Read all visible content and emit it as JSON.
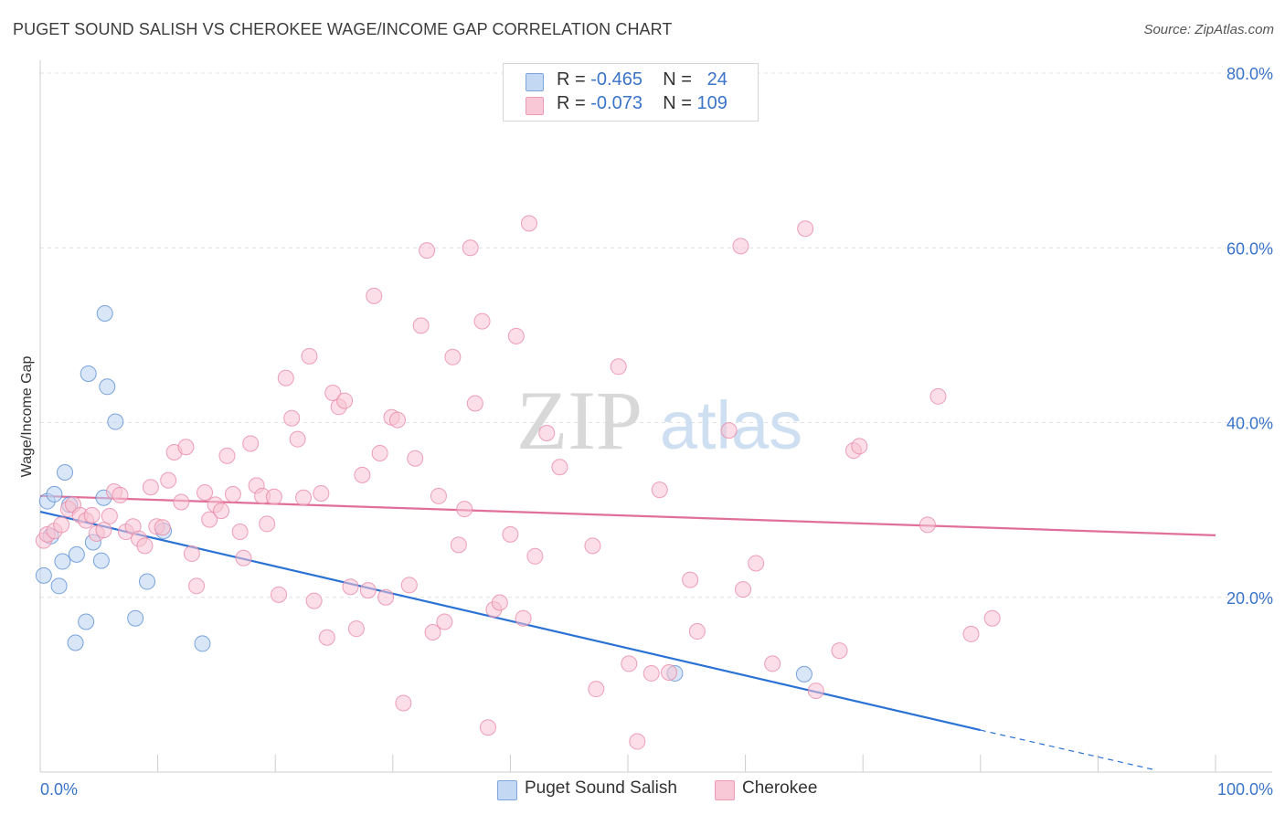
{
  "title": "PUGET SOUND SALISH VS CHEROKEE WAGE/INCOME GAP CORRELATION CHART",
  "source": "Source: ZipAtlas.com",
  "watermark": {
    "zip": "ZIP",
    "atlas": "atlas"
  },
  "legend": {
    "rows": [
      {
        "r_label": "R = ",
        "r_value": "-0.465",
        "n_label": "N = ",
        "n_value": "24",
        "color": "#9dc0ea"
      },
      {
        "r_label": "R = ",
        "r_value": "-0.073",
        "n_label": "N = ",
        "n_value": "109",
        "color": "#f4a9c0"
      }
    ]
  },
  "chart_data": {
    "type": "scatter",
    "ylabel": "Wage/Income Gap",
    "xlabel": "",
    "xlim": [
      0,
      100
    ],
    "ylim": [
      0,
      80
    ],
    "x_tick_labels": [
      {
        "value": 0,
        "label": "0.0%"
      },
      {
        "value": 100,
        "label": "100.0%"
      }
    ],
    "y_tick_labels": [
      {
        "value": 20,
        "label": "20.0%"
      },
      {
        "value": 40,
        "label": "40.0%"
      },
      {
        "value": 60,
        "label": "60.0%"
      },
      {
        "value": 80,
        "label": "80.0%"
      }
    ],
    "grid": "horizontal-dashed",
    "series": [
      {
        "name": "Puget Sound Salish",
        "color": "#5b8fd4",
        "fill": "#b9d2f1",
        "trend_color": "#2a72d4",
        "trend": {
          "x0": 0,
          "y0": 29.8,
          "x1": 80,
          "y1": 4.8,
          "dash_to_x": 95,
          "dash_to_y": 0.2
        },
        "points": [
          {
            "x": 0.3,
            "y": 22.5
          },
          {
            "x": 0.6,
            "y": 31.0
          },
          {
            "x": 0.9,
            "y": 27.0
          },
          {
            "x": 1.2,
            "y": 31.8
          },
          {
            "x": 1.6,
            "y": 21.3
          },
          {
            "x": 1.9,
            "y": 24.1
          },
          {
            "x": 2.1,
            "y": 34.3
          },
          {
            "x": 2.5,
            "y": 30.6
          },
          {
            "x": 3.0,
            "y": 14.8
          },
          {
            "x": 3.1,
            "y": 24.9
          },
          {
            "x": 3.9,
            "y": 17.2
          },
          {
            "x": 4.1,
            "y": 45.6
          },
          {
            "x": 4.5,
            "y": 26.3
          },
          {
            "x": 5.2,
            "y": 24.2
          },
          {
            "x": 5.4,
            "y": 31.4
          },
          {
            "x": 5.5,
            "y": 52.5
          },
          {
            "x": 5.7,
            "y": 44.1
          },
          {
            "x": 6.4,
            "y": 40.1
          },
          {
            "x": 8.1,
            "y": 17.6
          },
          {
            "x": 9.1,
            "y": 21.8
          },
          {
            "x": 10.5,
            "y": 27.6
          },
          {
            "x": 13.8,
            "y": 14.7
          },
          {
            "x": 54.0,
            "y": 11.3
          },
          {
            "x": 65.0,
            "y": 11.2
          }
        ]
      },
      {
        "name": "Cherokee",
        "color": "#e889a8",
        "fill": "#f8c3d3",
        "trend_color": "#e0709a",
        "trend": {
          "x0": 0,
          "y0": 31.6,
          "x1": 100,
          "y1": 27.1
        },
        "points": [
          {
            "x": 0.3,
            "y": 26.5
          },
          {
            "x": 0.6,
            "y": 27.2
          },
          {
            "x": 1.2,
            "y": 27.6
          },
          {
            "x": 1.8,
            "y": 28.3
          },
          {
            "x": 2.4,
            "y": 30.1
          },
          {
            "x": 2.8,
            "y": 30.6
          },
          {
            "x": 3.4,
            "y": 29.4
          },
          {
            "x": 3.9,
            "y": 28.8
          },
          {
            "x": 4.4,
            "y": 29.4
          },
          {
            "x": 4.8,
            "y": 27.3
          },
          {
            "x": 5.4,
            "y": 27.7
          },
          {
            "x": 5.9,
            "y": 29.3
          },
          {
            "x": 6.3,
            "y": 32.1
          },
          {
            "x": 6.8,
            "y": 31.7
          },
          {
            "x": 7.3,
            "y": 27.5
          },
          {
            "x": 7.9,
            "y": 28.1
          },
          {
            "x": 8.4,
            "y": 26.7
          },
          {
            "x": 8.9,
            "y": 25.9
          },
          {
            "x": 9.4,
            "y": 32.6
          },
          {
            "x": 9.9,
            "y": 28.1
          },
          {
            "x": 10.4,
            "y": 28.0
          },
          {
            "x": 10.9,
            "y": 33.4
          },
          {
            "x": 11.4,
            "y": 36.6
          },
          {
            "x": 12.0,
            "y": 30.9
          },
          {
            "x": 12.4,
            "y": 37.2
          },
          {
            "x": 12.9,
            "y": 25.0
          },
          {
            "x": 13.3,
            "y": 21.3
          },
          {
            "x": 14.0,
            "y": 32.0
          },
          {
            "x": 14.4,
            "y": 28.9
          },
          {
            "x": 14.9,
            "y": 30.6
          },
          {
            "x": 15.4,
            "y": 29.9
          },
          {
            "x": 15.9,
            "y": 36.2
          },
          {
            "x": 16.4,
            "y": 31.8
          },
          {
            "x": 17.0,
            "y": 27.5
          },
          {
            "x": 17.3,
            "y": 24.5
          },
          {
            "x": 17.9,
            "y": 37.6
          },
          {
            "x": 18.4,
            "y": 32.8
          },
          {
            "x": 18.9,
            "y": 31.6
          },
          {
            "x": 19.3,
            "y": 28.4
          },
          {
            "x": 19.9,
            "y": 31.5
          },
          {
            "x": 20.3,
            "y": 20.3
          },
          {
            "x": 20.9,
            "y": 45.1
          },
          {
            "x": 21.4,
            "y": 40.5
          },
          {
            "x": 21.9,
            "y": 38.1
          },
          {
            "x": 22.4,
            "y": 31.4
          },
          {
            "x": 22.9,
            "y": 47.6
          },
          {
            "x": 23.3,
            "y": 19.6
          },
          {
            "x": 23.9,
            "y": 31.9
          },
          {
            "x": 24.4,
            "y": 15.4
          },
          {
            "x": 24.9,
            "y": 43.4
          },
          {
            "x": 25.4,
            "y": 41.8
          },
          {
            "x": 25.9,
            "y": 42.5
          },
          {
            "x": 26.4,
            "y": 21.2
          },
          {
            "x": 26.9,
            "y": 16.4
          },
          {
            "x": 27.4,
            "y": 34.0
          },
          {
            "x": 27.9,
            "y": 20.8
          },
          {
            "x": 28.4,
            "y": 54.5
          },
          {
            "x": 28.9,
            "y": 36.5
          },
          {
            "x": 29.4,
            "y": 20.0
          },
          {
            "x": 29.9,
            "y": 40.6
          },
          {
            "x": 30.4,
            "y": 40.3
          },
          {
            "x": 30.9,
            "y": 7.9
          },
          {
            "x": 31.4,
            "y": 21.4
          },
          {
            "x": 31.9,
            "y": 35.9
          },
          {
            "x": 32.4,
            "y": 51.1
          },
          {
            "x": 32.9,
            "y": 59.7
          },
          {
            "x": 33.4,
            "y": 16.0
          },
          {
            "x": 33.9,
            "y": 31.6
          },
          {
            "x": 34.4,
            "y": 17.2
          },
          {
            "x": 35.1,
            "y": 47.5
          },
          {
            "x": 35.6,
            "y": 26.0
          },
          {
            "x": 36.1,
            "y": 30.1
          },
          {
            "x": 36.6,
            "y": 60.0
          },
          {
            "x": 37.0,
            "y": 42.2
          },
          {
            "x": 37.6,
            "y": 51.6
          },
          {
            "x": 38.1,
            "y": 5.1
          },
          {
            "x": 38.6,
            "y": 18.6
          },
          {
            "x": 39.1,
            "y": 19.4
          },
          {
            "x": 40.0,
            "y": 27.2
          },
          {
            "x": 40.5,
            "y": 49.9
          },
          {
            "x": 41.1,
            "y": 17.6
          },
          {
            "x": 41.6,
            "y": 62.8
          },
          {
            "x": 42.1,
            "y": 24.7
          },
          {
            "x": 43.1,
            "y": 38.8
          },
          {
            "x": 44.2,
            "y": 34.9
          },
          {
            "x": 47.0,
            "y": 25.9
          },
          {
            "x": 47.3,
            "y": 9.5
          },
          {
            "x": 49.2,
            "y": 46.4
          },
          {
            "x": 50.1,
            "y": 12.4
          },
          {
            "x": 50.8,
            "y": 3.5
          },
          {
            "x": 52.0,
            "y": 11.3
          },
          {
            "x": 52.7,
            "y": 32.3
          },
          {
            "x": 53.5,
            "y": 11.4
          },
          {
            "x": 55.3,
            "y": 22.0
          },
          {
            "x": 55.9,
            "y": 16.1
          },
          {
            "x": 58.6,
            "y": 39.1
          },
          {
            "x": 59.6,
            "y": 60.2
          },
          {
            "x": 59.8,
            "y": 20.9
          },
          {
            "x": 60.9,
            "y": 23.9
          },
          {
            "x": 62.3,
            "y": 12.4
          },
          {
            "x": 65.1,
            "y": 62.2
          },
          {
            "x": 66.0,
            "y": 9.3
          },
          {
            "x": 68.0,
            "y": 13.9
          },
          {
            "x": 69.2,
            "y": 36.8
          },
          {
            "x": 69.7,
            "y": 37.3
          },
          {
            "x": 75.5,
            "y": 28.3
          },
          {
            "x": 76.4,
            "y": 43.0
          },
          {
            "x": 79.2,
            "y": 15.8
          },
          {
            "x": 81.0,
            "y": 17.6
          }
        ]
      }
    ]
  }
}
